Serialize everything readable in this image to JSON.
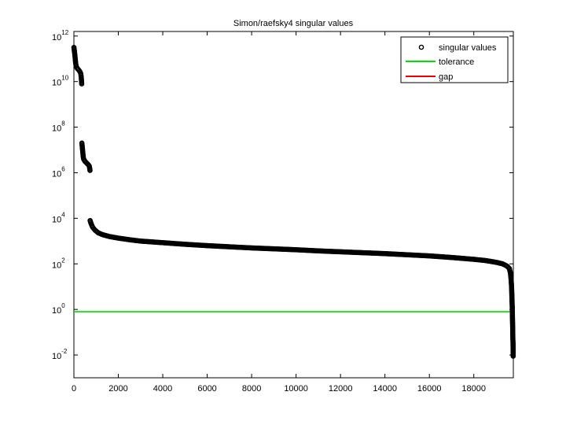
{
  "chart_data": {
    "type": "scatter",
    "title": "Simon/raefsky4 singular values",
    "xlabel": "",
    "ylabel": "",
    "xlim": [
      0,
      19779
    ],
    "ylim_log10": [
      -3,
      12.2
    ],
    "y_scale": "log",
    "grid": false,
    "legend_position": "top-right",
    "x_ticks": [
      0,
      2000,
      4000,
      6000,
      8000,
      10000,
      12000,
      14000,
      16000,
      18000
    ],
    "y_ticks": [
      {
        "base": "10",
        "exp": "12",
        "log10": 12
      },
      {
        "base": "10",
        "exp": "10",
        "log10": 10
      },
      {
        "base": "10",
        "exp": "8",
        "log10": 8
      },
      {
        "base": "10",
        "exp": "6",
        "log10": 6
      },
      {
        "base": "10",
        "exp": "4",
        "log10": 4
      },
      {
        "base": "10",
        "exp": "2",
        "log10": 2
      },
      {
        "base": "10",
        "exp": "0",
        "log10": 0
      },
      {
        "base": "10",
        "exp": "-2",
        "log10": -2
      }
    ],
    "series": [
      {
        "name": "singular values",
        "marker": "circle",
        "color": "#000000",
        "points": [
          {
            "x": 1,
            "log10y": 11.5
          },
          {
            "x": 20,
            "log10y": 11.35
          },
          {
            "x": 40,
            "log10y": 11.2
          },
          {
            "x": 60,
            "log10y": 11.0
          },
          {
            "x": 80,
            "log10y": 10.8
          },
          {
            "x": 100,
            "log10y": 10.7
          },
          {
            "x": 130,
            "log10y": 10.62
          },
          {
            "x": 160,
            "log10y": 10.57
          },
          {
            "x": 200,
            "log10y": 10.53
          },
          {
            "x": 240,
            "log10y": 10.48
          },
          {
            "x": 280,
            "log10y": 10.42
          },
          {
            "x": 310,
            "log10y": 10.35
          },
          {
            "x": 330,
            "log10y": 10.2
          },
          {
            "x": 345,
            "log10y": 10.0
          },
          {
            "x": 352,
            "log10y": 9.9
          },
          {
            "x": 360,
            "log10y": 7.3
          },
          {
            "x": 380,
            "log10y": 7.1
          },
          {
            "x": 400,
            "log10y": 6.9
          },
          {
            "x": 420,
            "log10y": 6.7
          },
          {
            "x": 440,
            "log10y": 6.6
          },
          {
            "x": 470,
            "log10y": 6.55
          },
          {
            "x": 500,
            "log10y": 6.5
          },
          {
            "x": 550,
            "log10y": 6.45
          },
          {
            "x": 600,
            "log10y": 6.4
          },
          {
            "x": 650,
            "log10y": 6.35
          },
          {
            "x": 690,
            "log10y": 6.3
          },
          {
            "x": 710,
            "log10y": 6.2
          },
          {
            "x": 725,
            "log10y": 6.1
          },
          {
            "x": 730,
            "log10y": 3.9
          },
          {
            "x": 780,
            "log10y": 3.75
          },
          {
            "x": 850,
            "log10y": 3.6
          },
          {
            "x": 950,
            "log10y": 3.48
          },
          {
            "x": 1100,
            "log10y": 3.36
          },
          {
            "x": 1300,
            "log10y": 3.28
          },
          {
            "x": 1600,
            "log10y": 3.2
          },
          {
            "x": 2000,
            "log10y": 3.13
          },
          {
            "x": 2500,
            "log10y": 3.06
          },
          {
            "x": 3000,
            "log10y": 3.0
          },
          {
            "x": 4000,
            "log10y": 2.93
          },
          {
            "x": 5000,
            "log10y": 2.86
          },
          {
            "x": 6000,
            "log10y": 2.8
          },
          {
            "x": 7000,
            "log10y": 2.75
          },
          {
            "x": 8000,
            "log10y": 2.7
          },
          {
            "x": 9000,
            "log10y": 2.66
          },
          {
            "x": 10000,
            "log10y": 2.62
          },
          {
            "x": 11000,
            "log10y": 2.57
          },
          {
            "x": 12000,
            "log10y": 2.53
          },
          {
            "x": 13000,
            "log10y": 2.49
          },
          {
            "x": 14000,
            "log10y": 2.45
          },
          {
            "x": 15000,
            "log10y": 2.4
          },
          {
            "x": 16000,
            "log10y": 2.35
          },
          {
            "x": 17000,
            "log10y": 2.28
          },
          {
            "x": 18000,
            "log10y": 2.2
          },
          {
            "x": 18500,
            "log10y": 2.15
          },
          {
            "x": 19000,
            "log10y": 2.07
          },
          {
            "x": 19300,
            "log10y": 2.0
          },
          {
            "x": 19500,
            "log10y": 1.9
          },
          {
            "x": 19600,
            "log10y": 1.8
          },
          {
            "x": 19650,
            "log10y": 1.6
          },
          {
            "x": 19680,
            "log10y": 1.3
          },
          {
            "x": 19700,
            "log10y": 1.0
          },
          {
            "x": 19710,
            "log10y": 0.7
          },
          {
            "x": 19720,
            "log10y": 0.4
          },
          {
            "x": 19730,
            "log10y": 0.1
          },
          {
            "x": 19738,
            "log10y": -0.3
          },
          {
            "x": 19745,
            "log10y": -0.6
          },
          {
            "x": 19752,
            "log10y": -0.9
          },
          {
            "x": 19758,
            "log10y": -1.3
          },
          {
            "x": 19765,
            "log10y": -1.45
          },
          {
            "x": 19772,
            "log10y": -2.05
          }
        ]
      },
      {
        "name": "tolerance",
        "type": "hline",
        "color": "#00dd00",
        "log10y": -0.1
      },
      {
        "name": "gap",
        "type": "hline",
        "color": "#ee0000",
        "log10y": null
      }
    ]
  }
}
